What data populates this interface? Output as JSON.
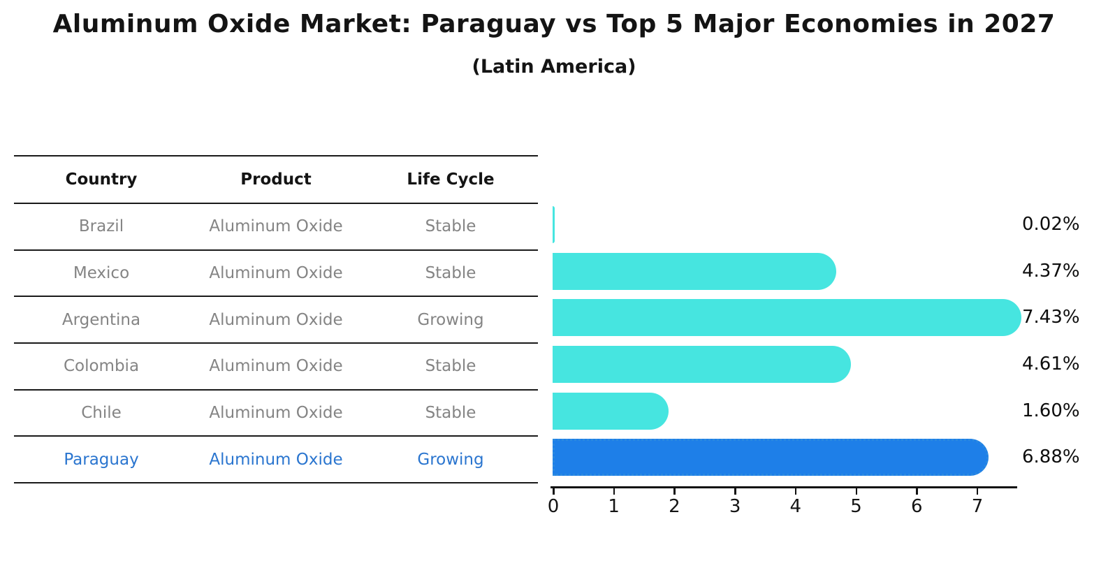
{
  "header": {
    "title": "Aluminum Oxide Market: Paraguay vs Top 5 Major Economies in 2027",
    "subtitle": "(Latin America)"
  },
  "table": {
    "headers": [
      "Country",
      "Product",
      "Life Cycle"
    ],
    "rows": [
      {
        "country": "Brazil",
        "product": "Aluminum Oxide",
        "life_cycle": "Stable",
        "highlighted": false
      },
      {
        "country": "Mexico",
        "product": "Aluminum Oxide",
        "life_cycle": "Stable",
        "highlighted": false
      },
      {
        "country": "Argentina",
        "product": "Aluminum Oxide",
        "life_cycle": "Growing",
        "highlighted": false
      },
      {
        "country": "Colombia",
        "product": "Aluminum Oxide",
        "life_cycle": "Stable",
        "highlighted": false
      },
      {
        "country": "Chile",
        "product": "Aluminum Oxide",
        "life_cycle": "Stable",
        "highlighted": false
      },
      {
        "country": "Paraguay",
        "product": "Aluminum Oxide",
        "life_cycle": "Growing",
        "highlighted": true
      }
    ]
  },
  "chart_data": {
    "type": "bar",
    "orientation": "horizontal",
    "title": "Aluminum Oxide Market: Paraguay vs Top 5 Major Economies in 2027",
    "subtitle": "(Latin America)",
    "categories": [
      "Brazil",
      "Mexico",
      "Argentina",
      "Colombia",
      "Chile",
      "Paraguay"
    ],
    "values": [
      0.02,
      4.37,
      7.43,
      4.61,
      1.6,
      6.88
    ],
    "value_labels": [
      "0.02%",
      "4.37%",
      "7.43%",
      "4.61%",
      "1.60%",
      "6.88%"
    ],
    "highlight_index": 5,
    "xlabel": "",
    "ylabel": "",
    "xlim": [
      0,
      7.7
    ],
    "xticks": [
      0,
      1,
      2,
      3,
      4,
      5,
      6,
      7
    ],
    "grid": false,
    "legend": false,
    "colors": {
      "default_bar": "#46e5e0",
      "highlight_bar": "#1e7fe8",
      "highlight_border": "#2b8ae0",
      "highlight_text": "#2a75cf",
      "muted_text": "#848484",
      "heading_text": "#141414"
    }
  }
}
